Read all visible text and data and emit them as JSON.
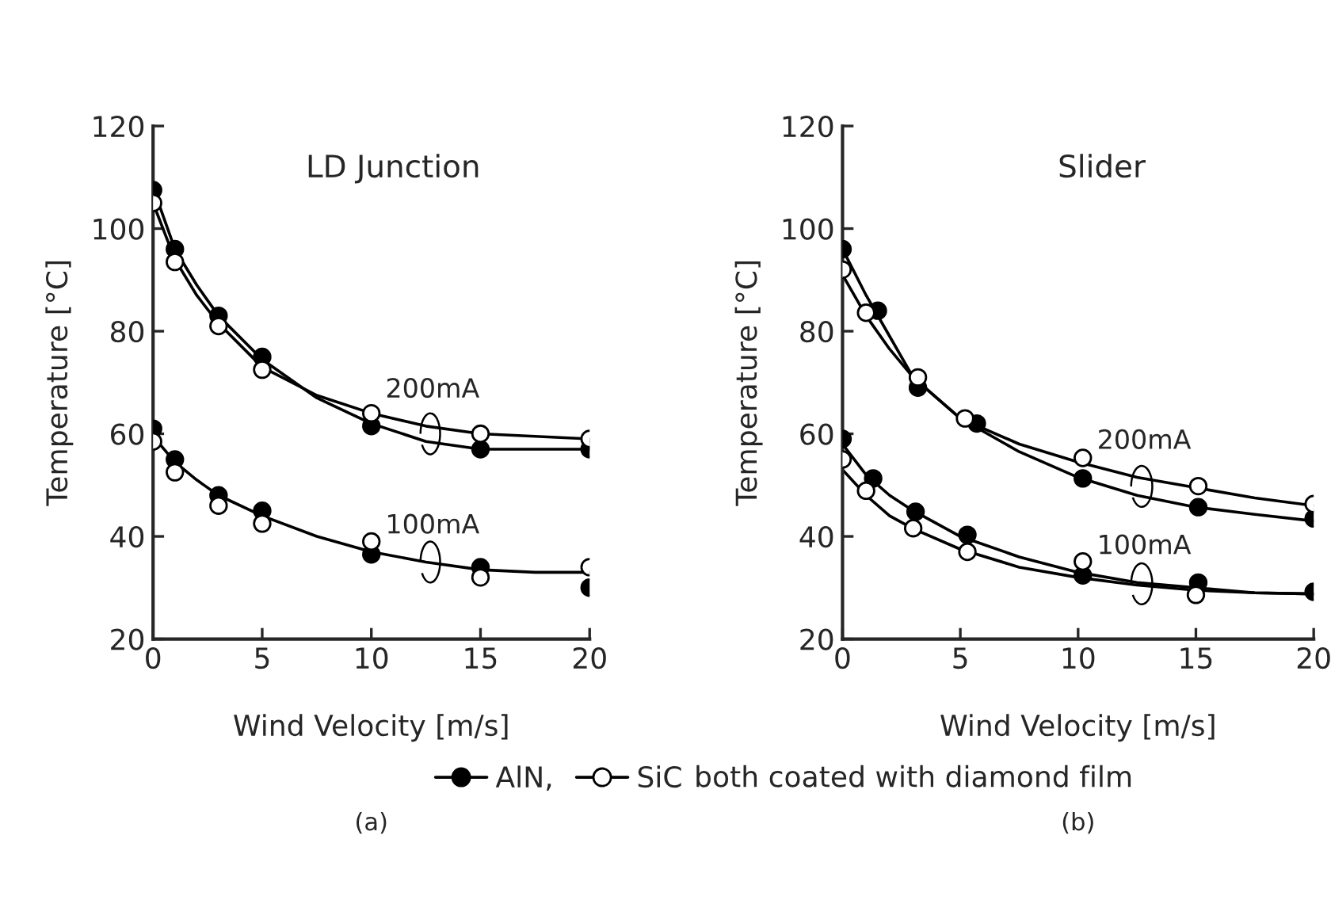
{
  "chart_data": [
    {
      "type": "scatter",
      "title": "LD Junction",
      "xlabel": "Wind Velocity [m/s]",
      "ylabel": "Temperature [°C]",
      "xlim": [
        0,
        20
      ],
      "xticks": [
        0,
        5,
        10,
        15,
        20
      ],
      "ylim": [
        20,
        120
      ],
      "yticks": [
        20,
        40,
        60,
        80,
        100,
        120
      ],
      "legend": "bottom",
      "series": [
        {
          "type": "line",
          "color": "#000000",
          "x": [
            0,
            1,
            2,
            3,
            5,
            7.5,
            10,
            12.5,
            15,
            17.5,
            20
          ],
          "values": [
            108,
            96,
            89,
            83,
            74.5,
            67,
            62,
            58.5,
            57,
            57,
            57
          ]
        },
        {
          "type": "line",
          "color": "#000000",
          "x": [
            0,
            1,
            2,
            3,
            5,
            7.5,
            10,
            12.5,
            15,
            17.5,
            20
          ],
          "values": [
            105,
            94,
            87,
            81.5,
            73,
            67.5,
            64,
            61.5,
            60,
            59.5,
            59
          ]
        },
        {
          "type": "line",
          "color": "#000000",
          "x": [
            0,
            1,
            2,
            3,
            5,
            7.5,
            10,
            12.5,
            15,
            17.5,
            20
          ],
          "values": [
            59.5,
            54.5,
            51,
            48,
            44,
            40,
            37,
            35,
            33.5,
            33,
            33
          ]
        },
        {
          "name": "AlN,",
          "color": "#000000",
          "x": [
            0,
            1,
            3,
            5,
            10,
            15,
            20,
            0,
            1,
            3,
            5,
            10,
            15,
            20
          ],
          "values": [
            107.5,
            96,
            83,
            75,
            61.5,
            57,
            57,
            61,
            55,
            48,
            45,
            36.5,
            34,
            30
          ]
        },
        {
          "name": "SiC",
          "color": "#ffffff",
          "x": [
            0,
            1,
            3,
            5,
            10,
            15,
            20,
            0,
            1,
            3,
            5,
            10,
            15,
            20
          ],
          "values": [
            105,
            93.5,
            81,
            72.5,
            64,
            60,
            59,
            58.5,
            52.5,
            46,
            42.5,
            39,
            32,
            34
          ]
        }
      ],
      "annotations": [
        "(a)",
        "200mA",
        "100mA",
        "both coated with diamond film"
      ]
    },
    {
      "type": "scatter",
      "title": "Slider",
      "xlabel": "Wind Velocity [m/s]",
      "ylabel": "Temperature [°C]",
      "xlim": [
        0,
        20
      ],
      "xticks": [
        0,
        5,
        10,
        15,
        20
      ],
      "ylim": [
        20,
        120
      ],
      "yticks": [
        20,
        40,
        60,
        80,
        100,
        120
      ],
      "series": [
        {
          "type": "line",
          "color": "#000000",
          "x": [
            0,
            1,
            2,
            3,
            5,
            7.5,
            10,
            12.5,
            15,
            17.5,
            20
          ],
          "values": [
            96,
            87,
            79,
            71,
            63,
            56.5,
            51.5,
            48,
            45.7,
            44.3,
            43
          ]
        },
        {
          "type": "line",
          "color": "#000000",
          "x": [
            0,
            1,
            2,
            3,
            5,
            7.5,
            10,
            12.5,
            15,
            17.5,
            20
          ],
          "values": [
            91,
            83,
            76.5,
            71,
            63,
            58,
            54.5,
            51.5,
            49.5,
            47.5,
            46
          ]
        },
        {
          "type": "line",
          "color": "#000000",
          "x": [
            0,
            1,
            2,
            3,
            5,
            7.5,
            10,
            12.5,
            15,
            17.5,
            20
          ],
          "values": [
            58,
            52,
            48,
            45,
            40,
            36,
            33,
            31,
            30,
            29,
            28.8
          ]
        },
        {
          "type": "line",
          "color": "#000000",
          "x": [
            0,
            1,
            2,
            3,
            5,
            7.5,
            10,
            12.5,
            15,
            17.5,
            20
          ],
          "values": [
            53,
            48,
            44,
            41.5,
            37.5,
            34,
            32,
            30.5,
            29.5,
            29,
            28.8
          ]
        },
        {
          "color": "#000000",
          "x": [
            0,
            1.5,
            3.2,
            5.7,
            10.2,
            15.1,
            20,
            0,
            1.3,
            3.1,
            5.3,
            10.2,
            15.1,
            20
          ],
          "values": [
            96,
            84,
            69,
            62,
            51.3,
            45.7,
            43.5,
            59,
            51.3,
            44.8,
            40.3,
            32.4,
            31,
            29.2
          ]
        },
        {
          "color": "#ffffff",
          "x": [
            0,
            1,
            3.2,
            5.2,
            10.2,
            15.1,
            20,
            0,
            1,
            3,
            5.3,
            10.2,
            15
          ],
          "values": [
            92,
            83.6,
            71,
            63,
            55.3,
            49.8,
            46.3,
            55,
            48.9,
            41.6,
            37,
            35.1,
            28.6
          ]
        }
      ],
      "annotations": [
        "(b)",
        "200mA",
        "100mA"
      ]
    }
  ]
}
